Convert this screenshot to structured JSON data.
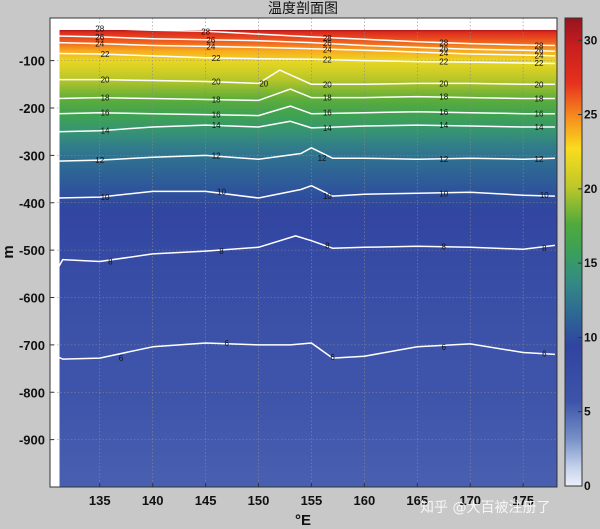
{
  "chart_data": {
    "type": "heatmap",
    "title": "温度剖面图",
    "xlabel": "°E",
    "ylabel": "m",
    "xlim": [
      130.3,
      178.2
    ],
    "ylim": [
      -1000,
      -10
    ],
    "x_ticks": [
      135,
      140,
      145,
      150,
      155,
      160,
      165,
      170,
      175
    ],
    "x_tick_labels": [
      "135",
      "140",
      "145",
      "150",
      "155",
      "160",
      "165",
      "170",
      "175"
    ],
    "y_ticks": [
      -100,
      -200,
      -300,
      -400,
      -500,
      -600,
      -700,
      -800,
      -900
    ],
    "y_tick_labels": [
      "-100",
      "-200",
      "-300",
      "-400",
      "-500",
      "-600",
      "-700",
      "-800",
      "-900"
    ],
    "grid": true,
    "colorbar": {
      "range": [
        0,
        31.5
      ],
      "ticks": [
        0,
        5,
        10,
        15,
        20,
        25,
        30
      ],
      "tick_labels": [
        "0",
        "5",
        "10",
        "15",
        "20",
        "25",
        "30"
      ]
    },
    "contour_levels": [
      28,
      26,
      24,
      22,
      20,
      18,
      16,
      14,
      12,
      10,
      8,
      6
    ],
    "contour_label_text": [
      "28",
      "26",
      "24",
      "22",
      "20",
      "18",
      "16",
      "14",
      "12",
      "10",
      "8",
      "6"
    ],
    "contour_lines": [
      {
        "level": 28,
        "x": [
          131,
          135,
          140,
          145,
          150,
          155,
          160,
          165,
          170,
          175,
          178
        ],
        "depth": [
          -30,
          -32,
          -36,
          -38,
          -44,
          -50,
          -55,
          -60,
          -64,
          -67,
          -68
        ]
      },
      {
        "level": 26,
        "x": [
          131,
          135,
          140,
          145,
          150,
          155,
          160,
          165,
          170,
          175,
          178
        ],
        "depth": [
          -48,
          -50,
          -54,
          -56,
          -58,
          -62,
          -68,
          -72,
          -76,
          -78,
          -80
        ]
      },
      {
        "level": 24,
        "x": [
          131,
          135,
          140,
          145,
          150,
          155,
          160,
          165,
          170,
          175,
          178
        ],
        "depth": [
          -62,
          -64,
          -68,
          -70,
          -72,
          -75,
          -78,
          -82,
          -86,
          -88,
          -90
        ]
      },
      {
        "level": 22,
        "x": [
          131,
          135,
          140,
          145,
          150,
          155,
          160,
          165,
          170,
          175,
          178
        ],
        "depth": [
          -85,
          -86,
          -90,
          -94,
          -96,
          -97,
          -100,
          -102,
          -103,
          -105,
          -106
        ]
      },
      {
        "level": 20,
        "x": [
          131,
          135,
          140,
          145,
          150,
          152,
          155,
          160,
          165,
          170,
          175,
          178
        ],
        "depth": [
          -140,
          -140,
          -142,
          -144,
          -148,
          -120,
          -150,
          -150,
          -148,
          -148,
          -150,
          -150
        ]
      },
      {
        "level": 18,
        "x": [
          131,
          135,
          140,
          145,
          150,
          153,
          155,
          160,
          165,
          170,
          175,
          178
        ],
        "depth": [
          -180,
          -178,
          -180,
          -182,
          -184,
          -160,
          -178,
          -178,
          -176,
          -178,
          -180,
          -180
        ]
      },
      {
        "level": 16,
        "x": [
          131,
          135,
          140,
          145,
          150,
          153,
          155,
          160,
          165,
          170,
          175,
          178
        ],
        "depth": [
          -212,
          -210,
          -212,
          -214,
          -216,
          -196,
          -212,
          -210,
          -208,
          -210,
          -212,
          -212
        ]
      },
      {
        "level": 14,
        "x": [
          131,
          135,
          140,
          145,
          150,
          153,
          155,
          160,
          165,
          170,
          175,
          178
        ],
        "depth": [
          -250,
          -248,
          -240,
          -236,
          -240,
          -228,
          -242,
          -238,
          -236,
          -238,
          -240,
          -240
        ]
      },
      {
        "level": 12,
        "x": [
          131,
          135,
          140,
          145,
          150,
          154,
          155,
          157,
          160,
          165,
          170,
          175,
          178
        ],
        "depth": [
          -312,
          -310,
          -304,
          -300,
          -308,
          -296,
          -284,
          -306,
          -306,
          -308,
          -306,
          -308,
          -306
        ]
      },
      {
        "level": 10,
        "x": [
          131,
          135,
          140,
          145,
          150,
          154,
          155,
          157,
          160,
          165,
          170,
          175,
          178
        ],
        "depth": [
          -390,
          -388,
          -376,
          -376,
          -390,
          -372,
          -364,
          -386,
          -382,
          -380,
          -378,
          -384,
          -386
        ]
      },
      {
        "level": 8,
        "x": [
          130.5,
          131.5,
          135,
          140,
          145,
          150,
          153.5,
          155,
          157,
          160,
          165,
          170,
          175,
          178
        ],
        "depth": [
          -560,
          -520,
          -524,
          -508,
          -502,
          -494,
          -470,
          -480,
          -496,
          -494,
          -492,
          -494,
          -498,
          -490
        ]
      },
      {
        "level": 6,
        "x": [
          130.5,
          131.5,
          135,
          140,
          145,
          150,
          153,
          155,
          157,
          160,
          165,
          170,
          175,
          178
        ],
        "depth": [
          -720,
          -730,
          -728,
          -704,
          -696,
          -700,
          -700,
          -696,
          -728,
          -724,
          -704,
          -698,
          -716,
          -720
        ]
      }
    ],
    "contour_labels": [
      {
        "text": "28",
        "points": [
          [
            135,
            -32
          ],
          [
            145,
            -38
          ],
          [
            156.5,
            -52
          ],
          [
            167.5,
            -62
          ],
          [
            176.5,
            -68
          ]
        ]
      },
      {
        "text": "26",
        "points": [
          [
            135,
            -50
          ],
          [
            145.5,
            -56
          ],
          [
            156.5,
            -63
          ],
          [
            167.5,
            -74
          ],
          [
            176.5,
            -79
          ]
        ]
      },
      {
        "text": "24",
        "points": [
          [
            135,
            -64
          ],
          [
            145.5,
            -70
          ],
          [
            156.5,
            -76
          ],
          [
            167.5,
            -84
          ],
          [
            176.5,
            -89
          ]
        ]
      },
      {
        "text": "22",
        "points": [
          [
            135.5,
            -86
          ],
          [
            146,
            -94
          ],
          [
            156.5,
            -98
          ],
          [
            167.5,
            -102
          ],
          [
            176.5,
            -105
          ]
        ]
      },
      {
        "text": "20",
        "points": [
          [
            135.5,
            -140
          ],
          [
            146,
            -144
          ],
          [
            150.5,
            -148
          ],
          [
            156.5,
            -150
          ],
          [
            167.5,
            -148
          ],
          [
            176.5,
            -150
          ]
        ]
      },
      {
        "text": "18",
        "points": [
          [
            135.5,
            -178
          ],
          [
            146,
            -182
          ],
          [
            156.5,
            -178
          ],
          [
            167.5,
            -176
          ],
          [
            176.5,
            -180
          ]
        ]
      },
      {
        "text": "16",
        "points": [
          [
            135.5,
            -210
          ],
          [
            146,
            -214
          ],
          [
            156.5,
            -210
          ],
          [
            167.5,
            -208
          ],
          [
            176.5,
            -212
          ]
        ]
      },
      {
        "text": "14",
        "points": [
          [
            135.5,
            -248
          ],
          [
            146,
            -236
          ],
          [
            156.5,
            -242
          ],
          [
            167.5,
            -236
          ],
          [
            176.5,
            -240
          ]
        ]
      },
      {
        "text": "12",
        "points": [
          [
            135,
            -310
          ],
          [
            146,
            -300
          ],
          [
            156,
            -306
          ],
          [
            167.5,
            -308
          ],
          [
            176.5,
            -308
          ]
        ]
      },
      {
        "text": "10",
        "points": [
          [
            135.5,
            -388
          ],
          [
            146.5,
            -376
          ],
          [
            156.5,
            -386
          ],
          [
            167.5,
            -380
          ],
          [
            177,
            -384
          ]
        ]
      },
      {
        "text": "8",
        "points": [
          [
            136,
            -524
          ],
          [
            146.5,
            -502
          ],
          [
            156.5,
            -490
          ],
          [
            167.5,
            -492
          ],
          [
            177,
            -496
          ]
        ]
      },
      {
        "text": "6",
        "points": [
          [
            137,
            -728
          ],
          [
            147,
            -696
          ],
          [
            157,
            -726
          ],
          [
            167.5,
            -704
          ],
          [
            177,
            -718
          ]
        ]
      }
    ],
    "temperature_profile": {
      "depth": [
        -20,
        -40,
        -60,
        -80,
        -100,
        -120,
        -140,
        -160,
        -180,
        -200,
        -220,
        -250,
        -280,
        -310,
        -350,
        -390,
        -420,
        -500,
        -600,
        -700,
        -800,
        -1000
      ],
      "temp": [
        30.5,
        28,
        26,
        24,
        22,
        21,
        20,
        19,
        18,
        17,
        16,
        14.5,
        13,
        12,
        11,
        10,
        9.2,
        8,
        7,
        6,
        5.7,
        5.2
      ]
    }
  },
  "watermark": "知乎 @大百被注册了"
}
